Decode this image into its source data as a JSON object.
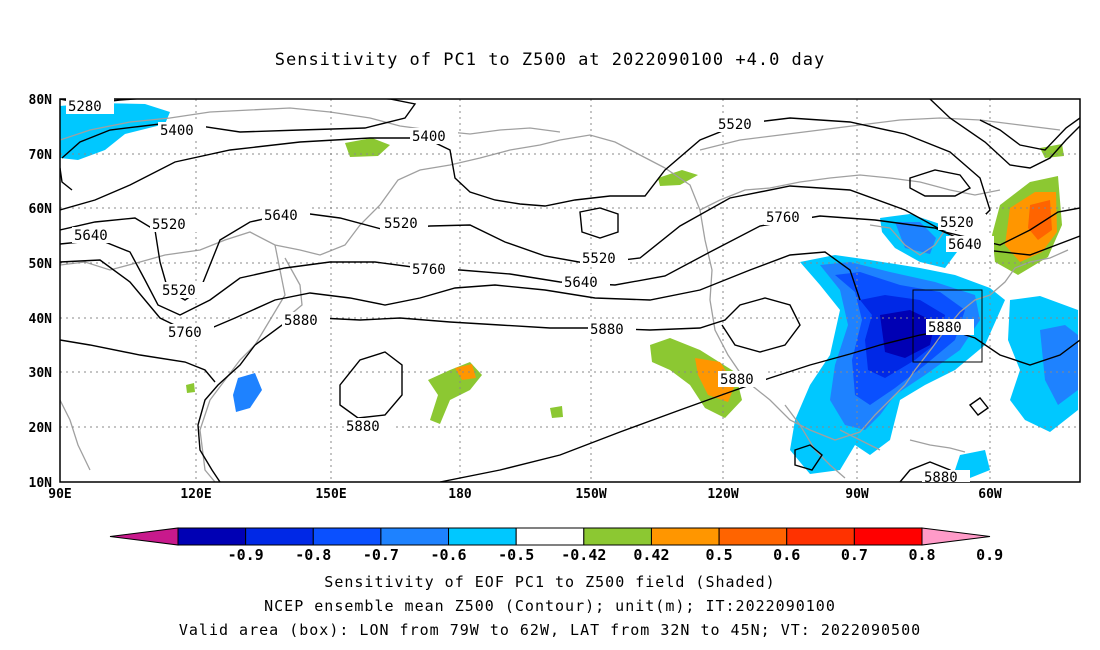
{
  "title": "Sensitivity of PC1 to Z500 at 2022090100 +4.0 day",
  "axes": {
    "x_ticks": [
      "90E",
      "120E",
      "150E",
      "180",
      "150W",
      "120W",
      "90W",
      "60W"
    ],
    "y_ticks": [
      "80N",
      "70N",
      "60N",
      "50N",
      "40N",
      "30N",
      "20N",
      "10N"
    ]
  },
  "contour_labels": [
    "5280",
    "5400",
    "5400",
    "5520",
    "5520",
    "5640",
    "5520",
    "5640",
    "5520",
    "5520",
    "5760",
    "5640",
    "5760",
    "5520",
    "5640",
    "5760",
    "5880",
    "5880",
    "5880",
    "5880",
    "5880",
    "5880"
  ],
  "colorbar": {
    "colors": [
      "#c8198c",
      "#0000b4",
      "#0028e6",
      "#0a50ff",
      "#1e82ff",
      "#00c8ff",
      "#ffffff",
      "#8cc832",
      "#ff9600",
      "#ff6400",
      "#ff3200",
      "#ff0000",
      "#ff9bc8"
    ],
    "labels": [
      "-0.9",
      "-0.8",
      "-0.7",
      "-0.6",
      "-0.5",
      "-0.42",
      "0.42",
      "0.5",
      "0.6",
      "0.7",
      "0.8",
      "0.9"
    ]
  },
  "captions": [
    "Sensitivity of EOF PC1 to Z500 field (Shaded)",
    "NCEP ensemble mean Z500 (Contour); unit(m); IT:2022090100",
    "Valid area (box): LON from 79W to 62W, LAT from 32N to 45N; VT: 2022090500"
  ]
}
